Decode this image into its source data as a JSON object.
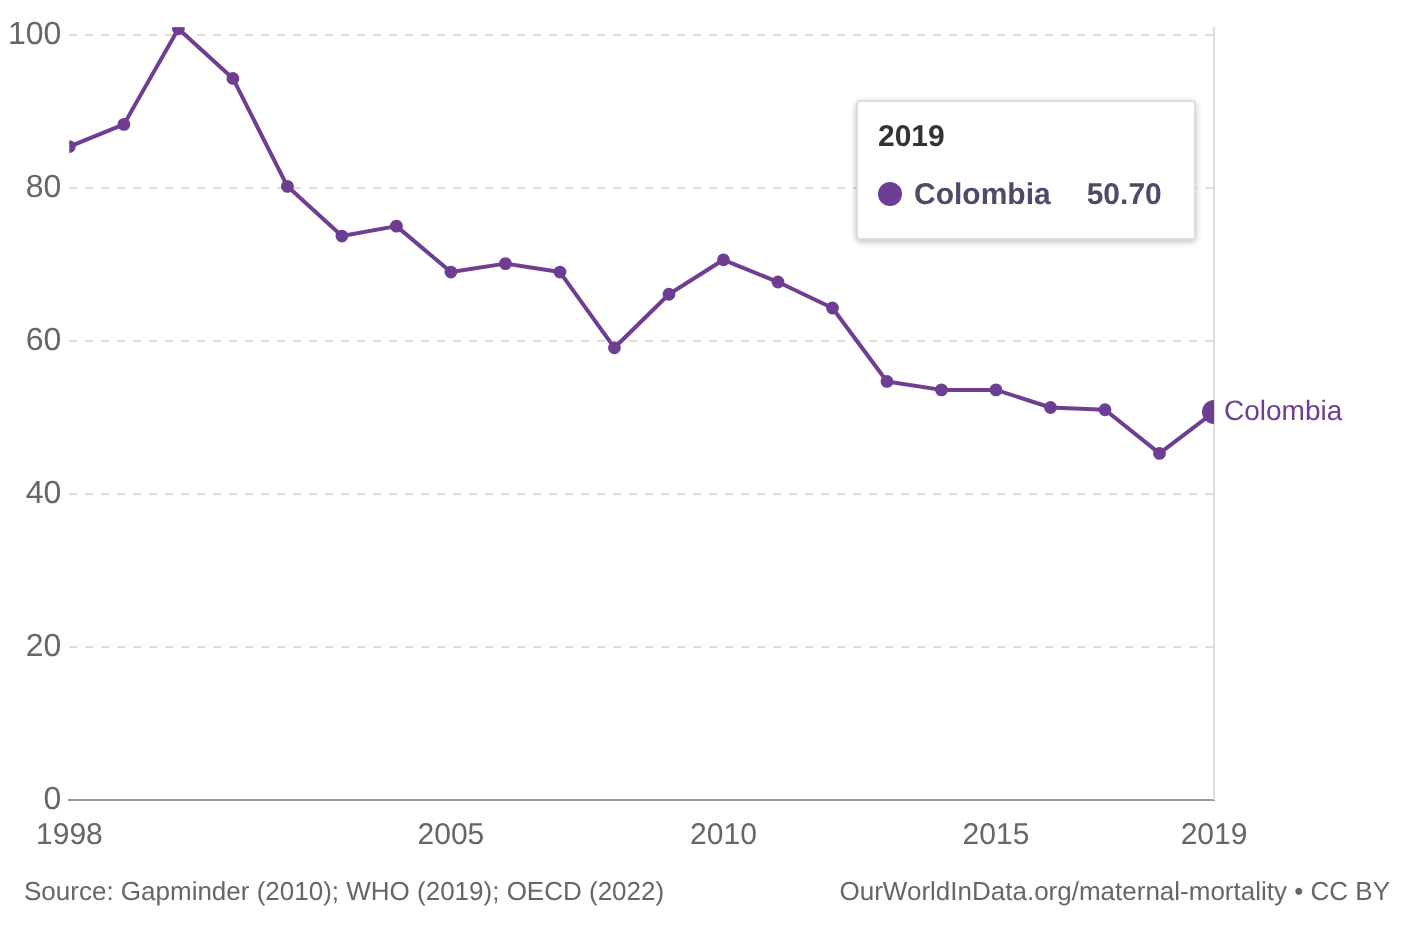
{
  "chart_data": {
    "type": "line",
    "x": [
      1998,
      1999,
      2000,
      2001,
      2002,
      2003,
      2004,
      2005,
      2006,
      2007,
      2008,
      2009,
      2010,
      2011,
      2012,
      2013,
      2014,
      2015,
      2016,
      2017,
      2018,
      2019
    ],
    "series": [
      {
        "name": "Colombia",
        "color": "#6d3e91",
        "values": [
          85.4,
          88.3,
          100.8,
          94.3,
          80.2,
          73.7,
          75.0,
          69.0,
          70.1,
          69.0,
          59.1,
          66.1,
          70.6,
          67.7,
          64.3,
          54.7,
          53.6,
          53.6,
          51.3,
          51.0,
          45.3,
          50.7
        ]
      }
    ],
    "xlim": [
      1998,
      2019
    ],
    "xticks": [
      1998,
      2005,
      2010,
      2015,
      2019
    ],
    "ylim": [
      0,
      101
    ],
    "yticks": [
      0,
      20,
      40,
      60,
      80,
      100
    ],
    "grid": "y",
    "marker": "circle",
    "line_style": "solid",
    "legend": "top right",
    "ref_lines": [
      {
        "axis": "x",
        "value": 2019,
        "color": "#dddddd"
      }
    ],
    "annotations": [
      "2019",
      "50.70",
      "Source: Gapminder (2010); WHO (2019); OECD (2022)",
      "OurWorldInData.org/maternal-mortality • CC BY"
    ]
  }
}
